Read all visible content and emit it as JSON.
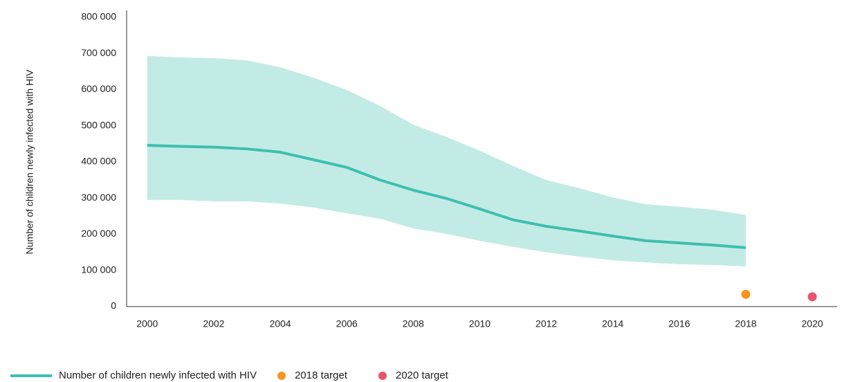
{
  "chart_data": {
    "type": "line",
    "y_label": "Number of children newly infected with HIV",
    "x": [
      2000,
      2001,
      2002,
      2003,
      2004,
      2005,
      2006,
      2007,
      2008,
      2009,
      2010,
      2011,
      2012,
      2013,
      2014,
      2015,
      2016,
      2017,
      2018
    ],
    "series": [
      {
        "name": "Number of children newly infected with HIV",
        "color": "#3dbfb0",
        "values": [
          446000,
          443000,
          441000,
          436000,
          427000,
          406000,
          385000,
          350000,
          322000,
          299000,
          270000,
          240000,
          222000,
          209000,
          195000,
          182000,
          176000,
          170000,
          163000
        ]
      }
    ],
    "band": {
      "color": "#c3ebe6",
      "upper": [
        693000,
        689000,
        687000,
        681000,
        662000,
        633000,
        599000,
        555000,
        503000,
        469000,
        431000,
        389000,
        350000,
        327000,
        302000,
        283000,
        276000,
        268000,
        253000
      ],
      "lower": [
        295000,
        295000,
        291000,
        291000,
        285000,
        274000,
        258000,
        243000,
        216000,
        201000,
        182000,
        165000,
        150000,
        138000,
        128000,
        122000,
        117000,
        115000,
        111000
      ]
    },
    "points": [
      {
        "name": "2018 target",
        "color": "#f7941d",
        "x": 2018,
        "value": 34000
      },
      {
        "name": "2020 target",
        "color": "#e8546b",
        "x": 2020,
        "value": 27000
      }
    ],
    "xlim": [
      1999.38,
      2020.75
    ],
    "xticks": [
      2000,
      2002,
      2004,
      2006,
      2008,
      2010,
      2012,
      2014,
      2016,
      2018,
      2020
    ],
    "ylim": [
      0,
      800000
    ],
    "yticks": [
      0,
      {
        "value": 100000,
        "label": "100 000"
      },
      {
        "value": 200000,
        "label": "200 000"
      },
      {
        "value": 300000,
        "label": "300 000"
      },
      {
        "value": 400000,
        "label": "400 000"
      },
      {
        "value": 500000,
        "label": "500 000"
      },
      {
        "value": 600000,
        "label": "600 000"
      },
      {
        "value": 700000,
        "label": "700 000"
      },
      {
        "value": 800000,
        "label": "800 000"
      }
    ]
  }
}
